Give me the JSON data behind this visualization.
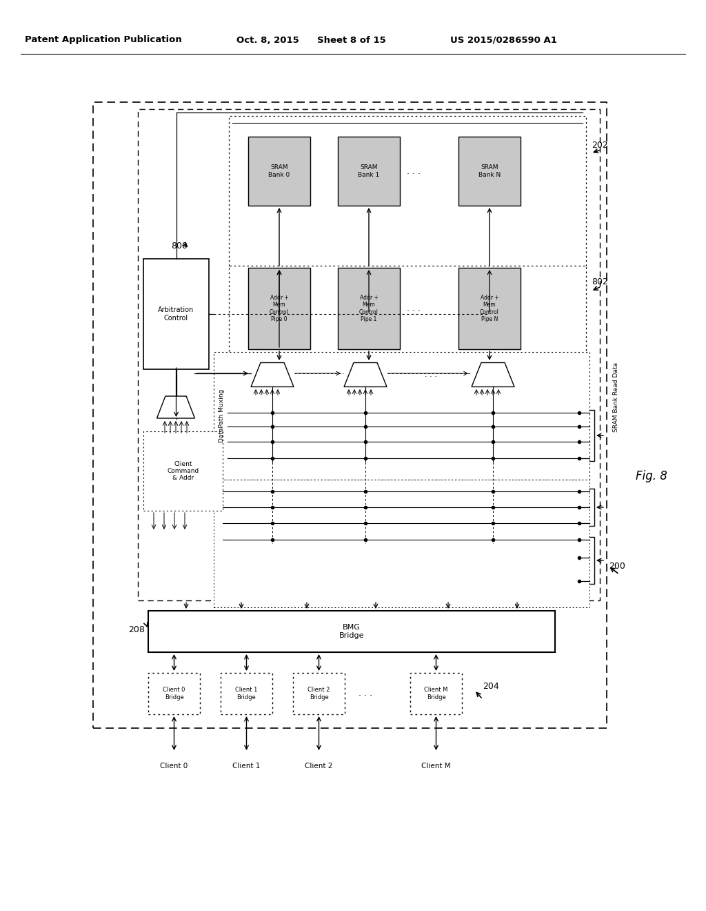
{
  "bg_color": "#ffffff",
  "header_text": "Patent Application Publication",
  "header_date": "Oct. 8, 2015",
  "header_sheet": "Sheet 8 of 15",
  "header_patent": "US 2015/0286590 A1",
  "fig_label": "Fig. 8",
  "sram_banks": [
    "SRAM\nBank 0",
    "SRAM\nBank 1",
    "SRAM\nBank N"
  ],
  "pipe_labels": [
    "Addr +\nMem\nControl\nPipe 0",
    "Addr +\nMem\nControl\nPipe 1",
    "Addr +\nMem\nControl\nPipe N"
  ],
  "client_bridges": [
    "Client 0\nBridge",
    "Client 1\nBridge",
    "Client 2\nBridge",
    "Client M\nBridge"
  ],
  "clients": [
    "Client 0",
    "Client 1",
    "Client 2",
    "Client M"
  ],
  "sram_gray": "#c8c8c8",
  "pipe_gray": "#c8c8c8"
}
